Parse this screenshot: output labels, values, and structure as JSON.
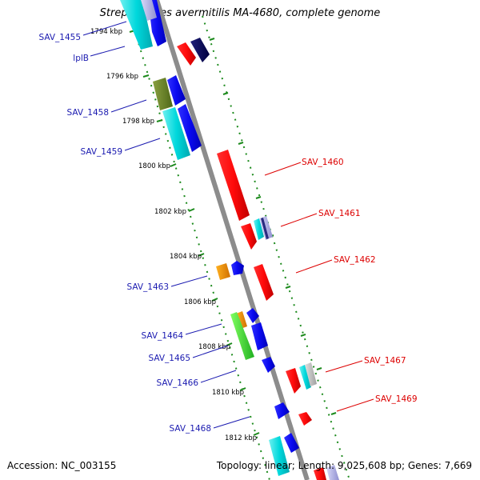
{
  "title": "Streptomyces avermitilis MA-4680, complete genome",
  "footer": {
    "accession": "Accession: NC_003155",
    "summary": "Topology: linear; Length: 9,025,608 bp; Genes: 7,669"
  },
  "colors": {
    "background": "#ffffff",
    "backbone": "#8c8c8c",
    "ruler": "#1c8a1c",
    "label_left": "#1a1ab0",
    "label_right": "#dd0000"
  },
  "ruler_ticks": [
    {
      "label": "1794 kbp",
      "kbp": 1794
    },
    {
      "label": "1796 kbp",
      "kbp": 1796
    },
    {
      "label": "1798 kbp",
      "kbp": 1798
    },
    {
      "label": "1800 kbp",
      "kbp": 1800
    },
    {
      "label": "1802 kbp",
      "kbp": 1802
    },
    {
      "label": "1804 kbp",
      "kbp": 1804
    },
    {
      "label": "1806 kbp",
      "kbp": 1806
    },
    {
      "label": "1808 kbp",
      "kbp": 1808
    },
    {
      "label": "1810 kbp",
      "kbp": 1810
    },
    {
      "label": "1812 kbp",
      "kbp": 1812
    }
  ],
  "gene_labels_left": [
    "SAV_1455",
    "lplB",
    "SAV_1458",
    "SAV_1459",
    "SAV_1463",
    "SAV_1464",
    "SAV_1465",
    "SAV_1466",
    "SAV_1468"
  ],
  "gene_labels_right": [
    "SAV_1460",
    "SAV_1461",
    "SAV_1462",
    "SAV_1467",
    "SAV_1469"
  ]
}
